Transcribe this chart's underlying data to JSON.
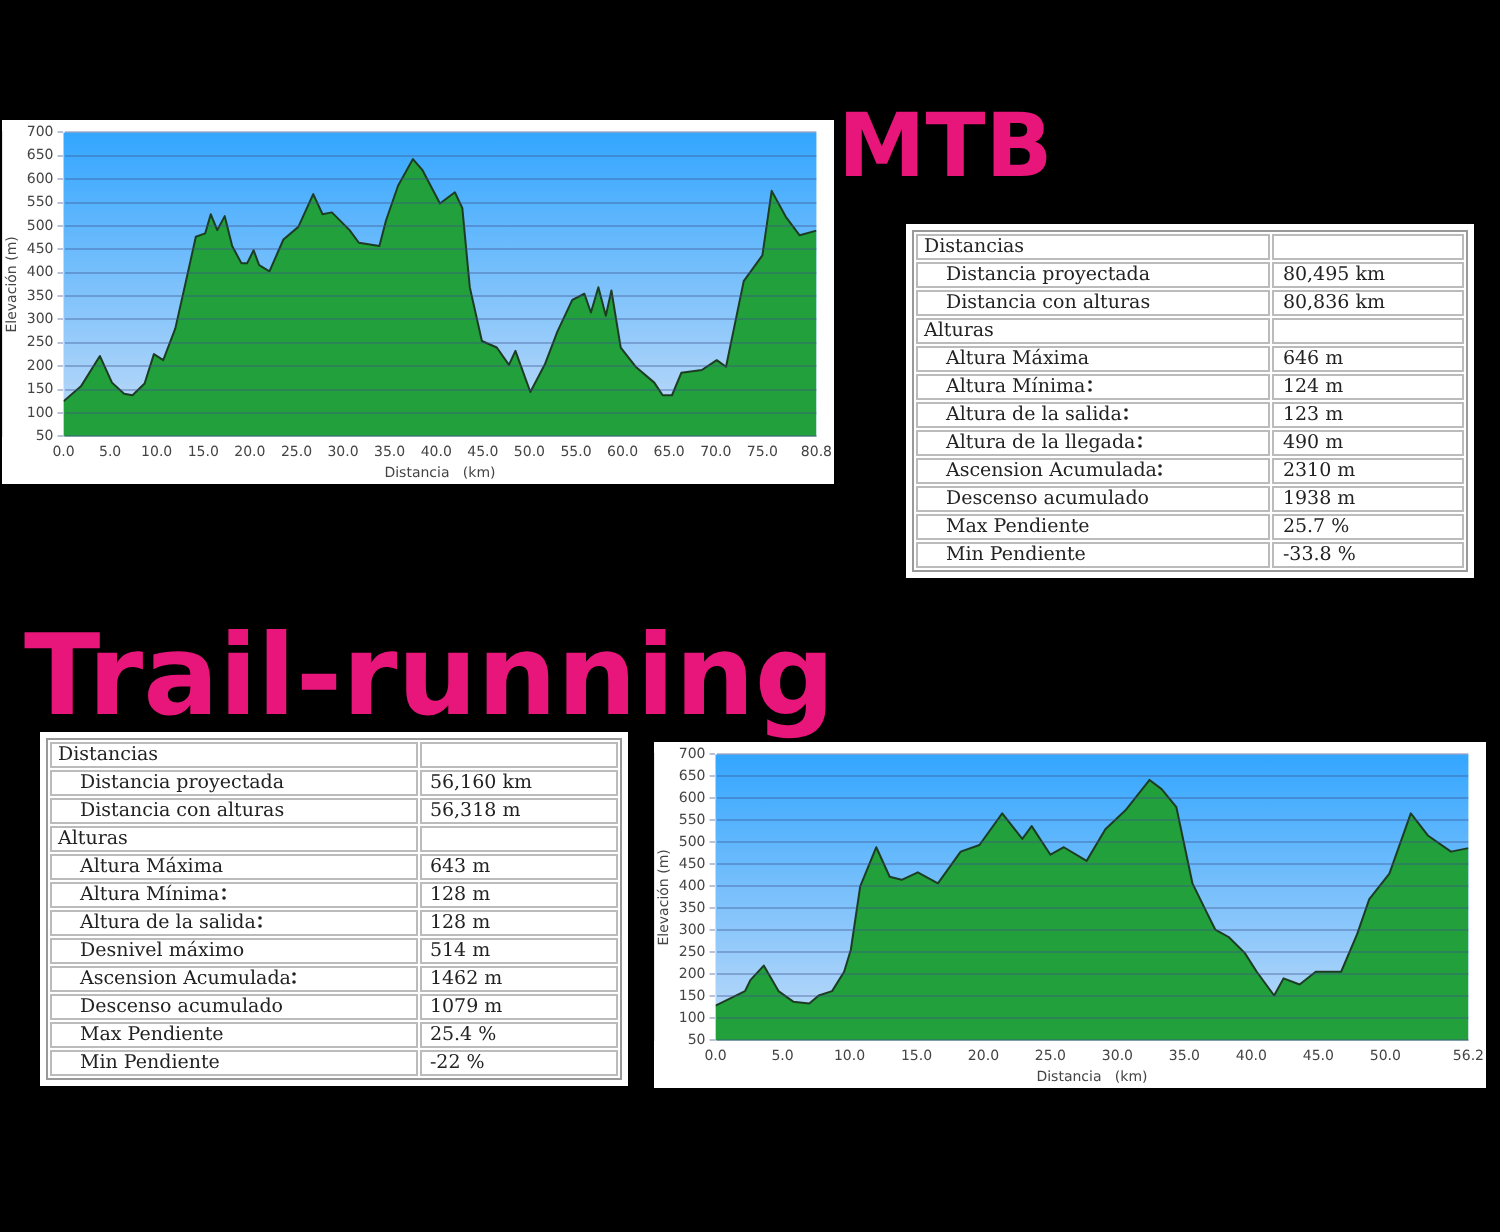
{
  "chart_data": [
    {
      "type": "area",
      "xlabel": "Distancia   (km)",
      "ylabel": "Elevación (m)",
      "color": "#22a03c",
      "marker": "none",
      "grid": "y",
      "legend": false,
      "x": [
        0,
        1.9,
        3.9,
        5.2,
        6.5,
        7.4,
        8.7,
        9.7,
        10.7,
        12.0,
        13.3,
        14.2,
        15.2,
        15.8,
        16.5,
        17.3,
        18.1,
        19.1,
        19.7,
        20.4,
        21.0,
        22.1,
        23.6,
        25.2,
        26.8,
        27.8,
        28.8,
        30.7,
        31.7,
        33.9,
        34.6,
        35.9,
        37.5,
        38.5,
        40.4,
        42.0,
        42.8,
        43.6,
        44.9,
        46.5,
        47.8,
        48.5,
        50.1,
        51.7,
        53.0,
        54.6,
        55.9,
        56.6,
        57.4,
        58.2,
        58.8,
        59.8,
        61.4,
        63.4,
        64.3,
        65.3,
        66.3,
        68.5,
        70.1,
        71.1,
        73.0,
        75.0,
        76.0,
        77.5,
        79.0,
        80.8
      ],
      "values": [
        125,
        158,
        222,
        165,
        141,
        138,
        163,
        226,
        213,
        281,
        396,
        477,
        484,
        525,
        491,
        521,
        457,
        420,
        420,
        448,
        416,
        403,
        471,
        498,
        568,
        525,
        529,
        491,
        464,
        457,
        511,
        586,
        643,
        620,
        548,
        572,
        538,
        369,
        254,
        240,
        203,
        233,
        145,
        206,
        274,
        342,
        355,
        315,
        369,
        308,
        362,
        240,
        199,
        165,
        138,
        138,
        186,
        192,
        213,
        199,
        382,
        437,
        575,
        520,
        480,
        490
      ],
      "xlim": [
        0,
        80.8
      ],
      "xticks": [
        {
          "value": 0,
          "label": "0.0"
        },
        {
          "value": 5,
          "label": "5.0"
        },
        {
          "value": 10,
          "label": "10.0"
        },
        {
          "value": 15,
          "label": "15.0"
        },
        {
          "value": 20,
          "label": "20.0"
        },
        {
          "value": 25,
          "label": "25.0"
        },
        {
          "value": 30,
          "label": "30.0"
        },
        {
          "value": 35,
          "label": "35.0"
        },
        {
          "value": 40,
          "label": "40.0"
        },
        {
          "value": 45,
          "label": "45.0"
        },
        {
          "value": 50,
          "label": "50.0"
        },
        {
          "value": 55,
          "label": "55.0"
        },
        {
          "value": 60,
          "label": "60.0"
        },
        {
          "value": 65,
          "label": "65.0"
        },
        {
          "value": 70,
          "label": "70.0"
        },
        {
          "value": 75,
          "label": "75.0"
        },
        {
          "value": 80.8,
          "label": "80.8"
        }
      ],
      "ylim": [
        50,
        700
      ],
      "yticks": [
        50,
        100,
        150,
        200,
        250,
        300,
        350,
        400,
        450,
        500,
        550,
        600,
        650,
        700
      ]
    },
    {
      "type": "other",
      "title": "MTB",
      "categories": [
        "Distancias",
        "Distancia proyectada",
        "Distancia con alturas",
        "Alturas",
        "Altura Máxima",
        "Altura Mínima",
        "Altura de la salida",
        "Altura de la llegada",
        "Ascension Acumulada",
        "Descenso acumulado",
        "Max Pendiente",
        "Min Pendiente"
      ],
      "value_labels": [
        null,
        "80,495 km",
        "80,836 km",
        null,
        "646 m",
        "124 m",
        "123 m",
        "490 m",
        "2310 m",
        "1938 m",
        "25.7 %",
        "-33.8 %"
      ]
    },
    {
      "type": "other",
      "title": "Trail-running",
      "categories": [
        "Distancias",
        "Distancia proyectada",
        "Distancia con alturas",
        "Alturas",
        "Altura Máxima",
        "Altura Mínima",
        "Altura de la salida",
        "Desnivel máximo",
        "Ascension Acumulada",
        "Descenso acumulado",
        "Max Pendiente",
        "Min Pendiente"
      ],
      "value_labels": [
        null,
        "56,160 km",
        "56,318 m",
        null,
        "643 m",
        "128 m",
        "128 m",
        "514 m",
        "1462 m",
        "1079 m",
        "25.4 %",
        "-22 %"
      ]
    },
    {
      "type": "area",
      "xlabel": "Distancia   (km)",
      "ylabel": "Elevación (m)",
      "color": "#22a03c",
      "marker": "none",
      "grid": "y",
      "legend": false,
      "x": [
        0,
        2.2,
        2.6,
        3.6,
        4.7,
        5.8,
        7.0,
        7.7,
        8.7,
        9.6,
        10.1,
        10.8,
        12.0,
        13.0,
        13.9,
        15.1,
        16.6,
        18.3,
        19.7,
        21.4,
        22.9,
        23.6,
        25.0,
        26.0,
        27.7,
        29.1,
        30.6,
        32.4,
        33.3,
        34.4,
        35.6,
        36.6,
        37.3,
        38.3,
        39.5,
        40.4,
        41.7,
        42.4,
        43.6,
        44.8,
        46.7,
        47.9,
        48.8,
        50.3,
        51.9,
        53.2,
        54.9,
        56.2
      ],
      "values": [
        129,
        162,
        187,
        220,
        162,
        138,
        134,
        152,
        162,
        206,
        256,
        400,
        489,
        422,
        415,
        432,
        407,
        479,
        494,
        566,
        508,
        537,
        472,
        489,
        458,
        530,
        573,
        642,
        621,
        580,
        407,
        345,
        302,
        285,
        249,
        206,
        152,
        191,
        177,
        206,
        206,
        292,
        371,
        429,
        566,
        515,
        479,
        487
      ],
      "xlim": [
        0,
        56.2
      ],
      "xticks": [
        {
          "value": 0,
          "label": "0.0"
        },
        {
          "value": 5,
          "label": "5.0"
        },
        {
          "value": 10,
          "label": "10.0"
        },
        {
          "value": 15,
          "label": "15.0"
        },
        {
          "value": 20,
          "label": "20.0"
        },
        {
          "value": 25,
          "label": "25.0"
        },
        {
          "value": 30,
          "label": "30.0"
        },
        {
          "value": 35,
          "label": "35.0"
        },
        {
          "value": 40,
          "label": "40.0"
        },
        {
          "value": 45,
          "label": "45.0"
        },
        {
          "value": 50,
          "label": "50.0"
        },
        {
          "value": 56.2,
          "label": "56.2"
        }
      ],
      "ylim": [
        50,
        700
      ],
      "yticks": [
        50,
        100,
        150,
        200,
        250,
        300,
        350,
        400,
        450,
        500,
        550,
        600,
        650,
        700
      ]
    }
  ]
}
